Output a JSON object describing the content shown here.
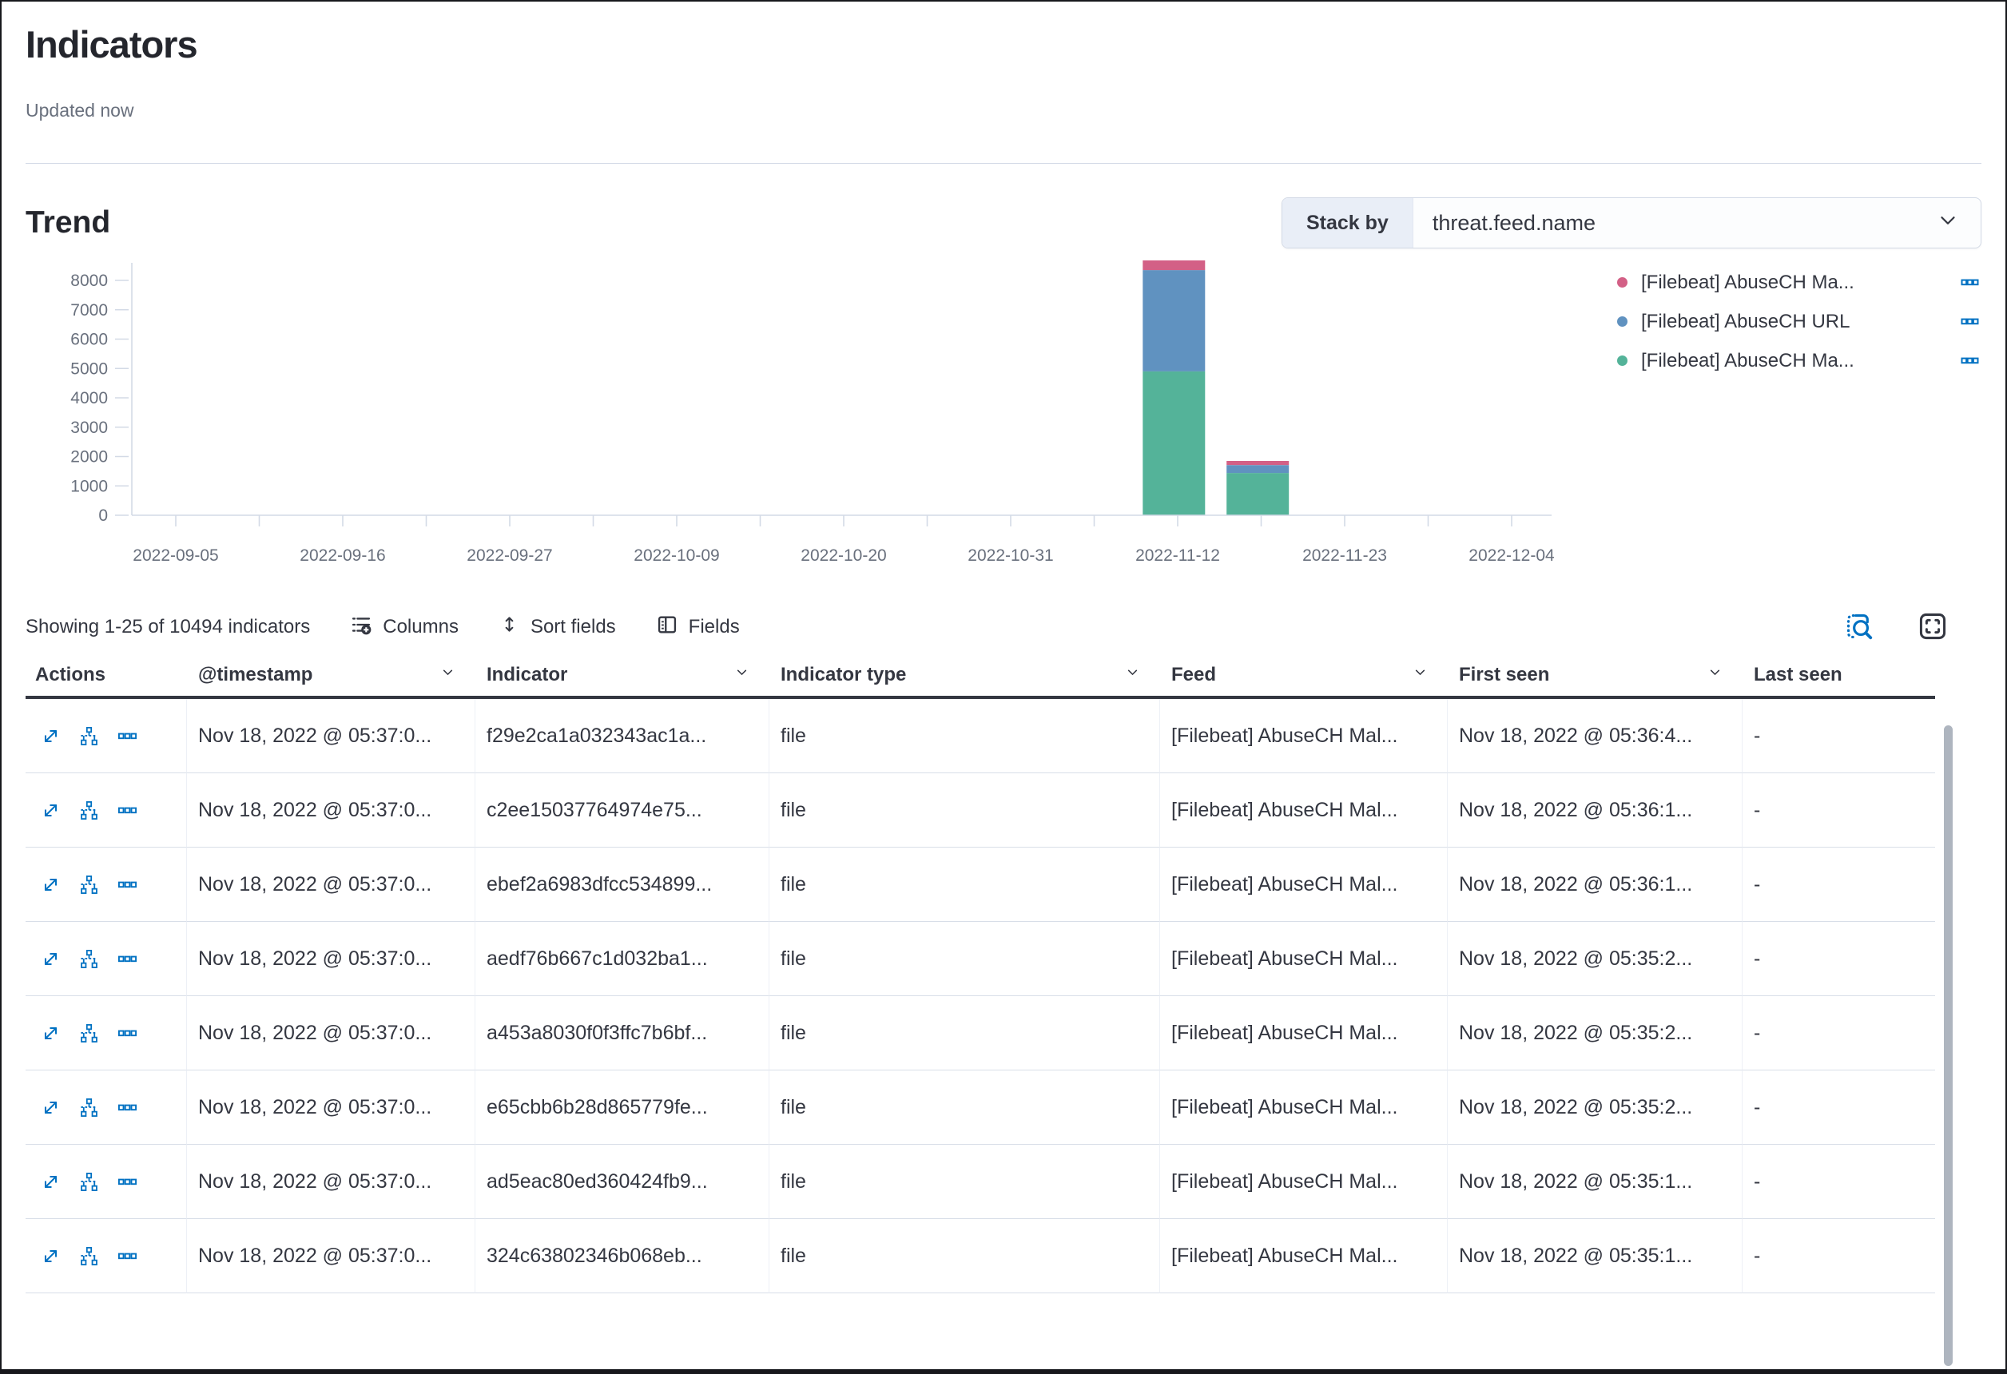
{
  "page": {
    "title": "Indicators",
    "updated": "Updated now"
  },
  "trend": {
    "heading": "Trend",
    "stack_by_label": "Stack by",
    "stack_by_value": "threat.feed.name"
  },
  "colors": {
    "accent_blue": "#0071c2",
    "text": "#343741",
    "muted_text": "#69707d",
    "border": "#d3dae6",
    "header_rule": "#343741"
  },
  "icons": {
    "chevron": "chevron-down",
    "columns": "list-with-add-circle",
    "sort": "up-down-arrows",
    "fields": "panel-with-list",
    "inspect": "magnifier-over-document",
    "fullscreen": "corner-brackets",
    "expand": "diagonal-expand-arrows",
    "timeline": "mini-flowchart",
    "more": "three-boxes-horizontal"
  },
  "chart_data": {
    "type": "bar",
    "stacked": true,
    "title": "Trend",
    "xlabel": "",
    "ylabel": "",
    "ylim": [
      0,
      8000
    ],
    "grid": false,
    "legend_position": "right",
    "y_ticks": [
      0,
      1000,
      2000,
      3000,
      4000,
      5000,
      6000,
      7000,
      8000
    ],
    "x_tick_labels": [
      "2022-09-05",
      "2022-09-16",
      "2022-09-27",
      "2022-10-09",
      "2022-10-20",
      "2022-10-31",
      "2022-11-12",
      "2022-11-23",
      "2022-12-04"
    ],
    "series": [
      {
        "name": "[Filebeat] AbuseCH Ma...",
        "color": "#54B399"
      },
      {
        "name": "[Filebeat] AbuseCH URL",
        "color": "#6092C0"
      },
      {
        "name": "[Filebeat] AbuseCH Ma...",
        "color": "#D36086"
      }
    ],
    "bars": [
      {
        "date": "2022-11-12",
        "x_frac": 0.734,
        "values": [
          4900,
          3450,
          330
        ]
      },
      {
        "date": "2022-11-17",
        "x_frac": 0.793,
        "values": [
          1440,
          270,
          140
        ]
      }
    ],
    "legend": [
      {
        "label": "[Filebeat] AbuseCH Ma...",
        "color": "#D36086"
      },
      {
        "label": "[Filebeat] AbuseCH URL",
        "color": "#6092C0"
      },
      {
        "label": "[Filebeat] AbuseCH Ma...",
        "color": "#54B399"
      }
    ]
  },
  "toolbar": {
    "showing": "Showing 1-25 of 10494 indicators",
    "columns_label": "Columns",
    "sort_label": "Sort fields",
    "fields_label": "Fields"
  },
  "table": {
    "headers": [
      {
        "label": "Actions",
        "chevron": false
      },
      {
        "label": "@timestamp",
        "chevron": true
      },
      {
        "label": "Indicator",
        "chevron": true
      },
      {
        "label": "Indicator type",
        "chevron": true
      },
      {
        "label": "Feed",
        "chevron": true
      },
      {
        "label": "First seen",
        "chevron": true
      },
      {
        "label": "Last seen",
        "chevron": false
      }
    ],
    "rows": [
      {
        "timestamp": "Nov 18, 2022 @ 05:37:0...",
        "indicator": "f29e2ca1a032343ac1a...",
        "type": "file",
        "feed": "[Filebeat] AbuseCH Mal...",
        "first_seen": "Nov 18, 2022 @ 05:36:4...",
        "last_seen": "-"
      },
      {
        "timestamp": "Nov 18, 2022 @ 05:37:0...",
        "indicator": "c2ee15037764974e75...",
        "type": "file",
        "feed": "[Filebeat] AbuseCH Mal...",
        "first_seen": "Nov 18, 2022 @ 05:36:1...",
        "last_seen": "-"
      },
      {
        "timestamp": "Nov 18, 2022 @ 05:37:0...",
        "indicator": "ebef2a6983dfcc534899...",
        "type": "file",
        "feed": "[Filebeat] AbuseCH Mal...",
        "first_seen": "Nov 18, 2022 @ 05:36:1...",
        "last_seen": "-"
      },
      {
        "timestamp": "Nov 18, 2022 @ 05:37:0...",
        "indicator": "aedf76b667c1d032ba1...",
        "type": "file",
        "feed": "[Filebeat] AbuseCH Mal...",
        "first_seen": "Nov 18, 2022 @ 05:35:2...",
        "last_seen": "-"
      },
      {
        "timestamp": "Nov 18, 2022 @ 05:37:0...",
        "indicator": "a453a8030f0f3ffc7b6bf...",
        "type": "file",
        "feed": "[Filebeat] AbuseCH Mal...",
        "first_seen": "Nov 18, 2022 @ 05:35:2...",
        "last_seen": "-"
      },
      {
        "timestamp": "Nov 18, 2022 @ 05:37:0...",
        "indicator": "e65cbb6b28d865779fe...",
        "type": "file",
        "feed": "[Filebeat] AbuseCH Mal...",
        "first_seen": "Nov 18, 2022 @ 05:35:2...",
        "last_seen": "-"
      },
      {
        "timestamp": "Nov 18, 2022 @ 05:37:0...",
        "indicator": "ad5eac80ed360424fb9...",
        "type": "file",
        "feed": "[Filebeat] AbuseCH Mal...",
        "first_seen": "Nov 18, 2022 @ 05:35:1...",
        "last_seen": "-"
      },
      {
        "timestamp": "Nov 18, 2022 @ 05:37:0...",
        "indicator": "324c63802346b068eb...",
        "type": "file",
        "feed": "[Filebeat] AbuseCH Mal...",
        "first_seen": "Nov 18, 2022 @ 05:35:1...",
        "last_seen": "-"
      }
    ]
  }
}
